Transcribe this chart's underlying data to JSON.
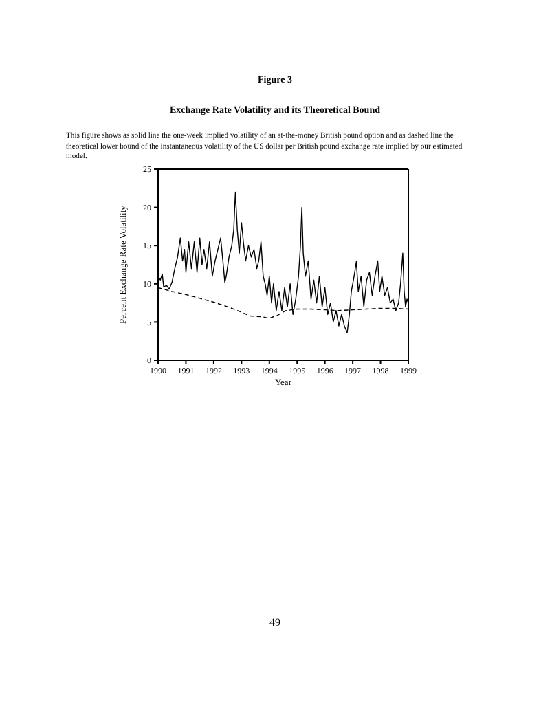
{
  "chart_data": {
    "type": "line",
    "title": "Figure 3",
    "subtitle": "Exchange Rate Volatility and its Theoretical Bound",
    "annotations": [
      "This figure shows as solid line the one-week implied volatility of an at-the-money British pound option and as dashed line the theoretical lower bound of the instantaneous volatility of the US dollar per British pound exchange rate implied by our estimated model.",
      "49"
    ],
    "xlabel": "Year",
    "ylabel": "Percent Exchange Rate Volatility",
    "xlim": [
      1990,
      1999
    ],
    "xticks": [
      1990,
      1991,
      1992,
      1993,
      1994,
      1995,
      1996,
      1997,
      1998,
      1999
    ],
    "ylim": [
      0,
      25
    ],
    "yticks": [
      0,
      5,
      10,
      15,
      20,
      25
    ],
    "marker": "none",
    "series": [
      {
        "color": "#000000",
        "line_style": "solid",
        "x": [
          1990.0,
          1990.08,
          1990.15,
          1990.2,
          1990.3,
          1990.4,
          1990.5,
          1990.6,
          1990.7,
          1990.8,
          1990.88,
          1990.95,
          1991.0,
          1991.1,
          1991.2,
          1991.3,
          1991.4,
          1991.5,
          1991.58,
          1991.65,
          1991.75,
          1991.85,
          1991.95,
          1992.05,
          1992.15,
          1992.25,
          1992.33,
          1992.4,
          1992.45,
          1992.55,
          1992.65,
          1992.72,
          1992.78,
          1992.85,
          1992.92,
          1993.0,
          1993.08,
          1993.15,
          1993.25,
          1993.35,
          1993.45,
          1993.55,
          1993.62,
          1993.7,
          1993.78,
          1993.85,
          1993.92,
          1994.0,
          1994.08,
          1994.15,
          1994.25,
          1994.35,
          1994.45,
          1994.55,
          1994.65,
          1994.75,
          1994.85,
          1994.95,
          1995.05,
          1995.12,
          1995.17,
          1995.22,
          1995.3,
          1995.4,
          1995.5,
          1995.6,
          1995.7,
          1995.8,
          1995.9,
          1996.0,
          1996.1,
          1996.2,
          1996.3,
          1996.4,
          1996.5,
          1996.6,
          1996.7,
          1996.8,
          1996.88,
          1996.95,
          1997.05,
          1997.13,
          1997.2,
          1997.3,
          1997.4,
          1997.5,
          1997.6,
          1997.7,
          1997.8,
          1997.9,
          1997.97,
          1998.05,
          1998.15,
          1998.25,
          1998.35,
          1998.45,
          1998.55,
          1998.65,
          1998.72,
          1998.8,
          1998.85,
          1998.9,
          1998.95,
          1999.0
        ],
        "values": [
          11,
          10.5,
          11.3,
          9.6,
          9.8,
          9.3,
          10.2,
          12,
          13.5,
          16,
          13,
          14.5,
          11.5,
          15.5,
          12,
          15.5,
          11.5,
          16,
          12.5,
          14.5,
          12,
          15.5,
          11,
          13,
          14.5,
          16,
          13,
          10.2,
          11,
          13.5,
          15,
          17,
          22,
          17,
          14,
          18,
          15,
          13,
          15,
          13.5,
          14.5,
          12,
          13,
          15.5,
          11,
          10,
          8.5,
          11,
          7.5,
          10,
          6.5,
          9,
          6.5,
          9.5,
          7,
          10,
          6,
          8,
          11,
          15,
          20,
          14,
          11,
          13,
          8,
          10.5,
          7.5,
          11,
          7,
          9.5,
          6,
          7.5,
          5,
          6.5,
          4.5,
          6,
          4.5,
          3.6,
          6,
          9,
          11,
          12.9,
          9,
          11,
          7,
          10.5,
          11.5,
          8.5,
          11,
          13,
          9,
          11,
          8.5,
          9.5,
          7.5,
          8,
          6.5,
          7.5,
          10,
          14,
          9,
          7,
          8,
          7.5
        ]
      },
      {
        "color": "#000000",
        "line_style": "dashed",
        "x": [
          1990,
          1990.5,
          1991,
          1991.5,
          1992,
          1992.5,
          1993,
          1993.3,
          1993.7,
          1994,
          1994.3,
          1994.6,
          1995,
          1995.5,
          1996,
          1996.5,
          1997,
          1997.5,
          1998,
          1998.5,
          1999
        ],
        "values": [
          9.5,
          9,
          8.6,
          8.1,
          7.6,
          7,
          6.3,
          5.8,
          5.7,
          5.5,
          5.9,
          6.5,
          6.7,
          6.7,
          6.6,
          6.5,
          6.6,
          6.7,
          6.8,
          6.8,
          6.7
        ]
      }
    ]
  }
}
